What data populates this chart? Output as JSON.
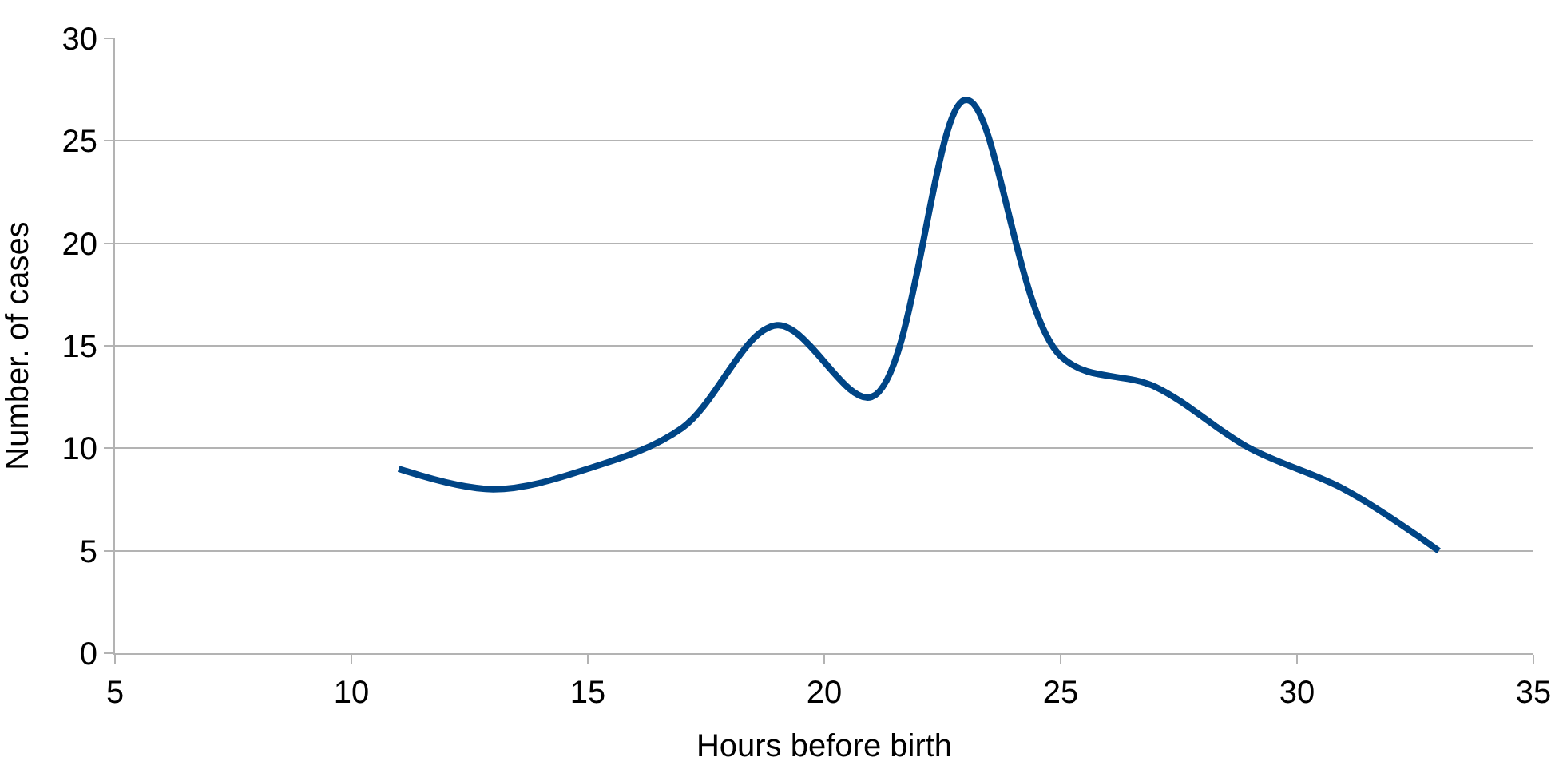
{
  "chart_data": {
    "type": "line",
    "xlabel": "Hours before birth",
    "ylabel": "Number. of cases",
    "x": [
      11,
      13,
      15,
      17,
      19,
      21,
      23,
      25,
      27,
      29,
      31,
      33
    ],
    "series": [
      {
        "color": "#004586",
        "values": [
          9,
          8,
          9,
          11,
          16,
          12.5,
          27,
          14.5,
          13,
          10,
          8,
          5
        ]
      }
    ],
    "xlim": [
      5,
      35
    ],
    "xticks": [
      5,
      10,
      15,
      20,
      25,
      30,
      35
    ],
    "ylim": [
      0,
      30
    ],
    "yticks": [
      0,
      5,
      10,
      15,
      20,
      25,
      30
    ],
    "grid": "y",
    "marker": "none",
    "line_style": "solid",
    "legend": false
  }
}
